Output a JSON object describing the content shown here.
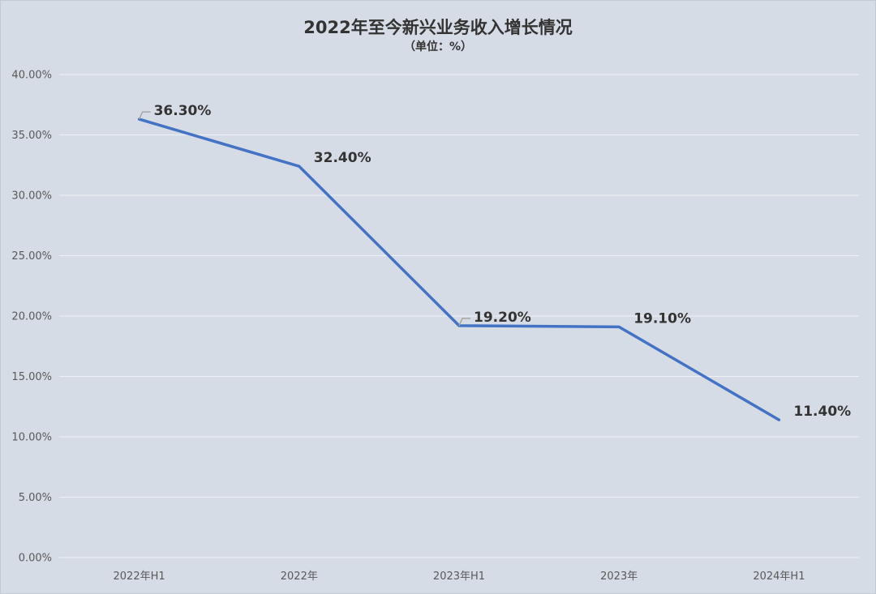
{
  "chart_data": {
    "type": "line",
    "title": "2022年至今新兴业务收入增长情况",
    "subtitle": "（单位：%）",
    "categories": [
      "2022年H1",
      "2022年",
      "2023年H1",
      "2023年",
      "2024年H1"
    ],
    "values": [
      36.3,
      32.4,
      19.2,
      19.1,
      11.4
    ],
    "data_labels": [
      "36.30%",
      "32.40%",
      "19.20%",
      "19.10%",
      "11.40%"
    ],
    "ylim": [
      0,
      40
    ],
    "yticks": [
      "0.00%",
      "5.00%",
      "10.00%",
      "15.00%",
      "20.00%",
      "25.00%",
      "30.00%",
      "35.00%",
      "40.00%"
    ],
    "ytick_values": [
      0,
      5,
      10,
      15,
      20,
      25,
      30,
      35,
      40
    ],
    "grid": true,
    "legend": "none",
    "line_color": "#4472c4",
    "background_color": "#d6dce5",
    "grid_color": "#eef1f5"
  }
}
